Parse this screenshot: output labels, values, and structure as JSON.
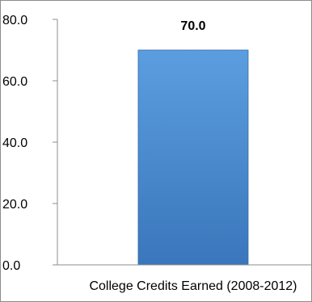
{
  "chart_data": {
    "type": "bar",
    "categories": [
      "College Credits Earned (2008-2012)"
    ],
    "values": [
      70.0
    ],
    "data_labels": [
      "70.0"
    ],
    "ylim": [
      0,
      80
    ],
    "yticks": [
      0,
      20,
      40,
      60,
      80
    ],
    "ytick_labels": [
      "0.0",
      "20.0",
      "40.0",
      "60.0",
      "80.0"
    ],
    "grid": false,
    "legend": "none",
    "colors": {
      "bar_top": "#5b9ee0",
      "bar_bottom": "#3a76bb",
      "bar_edge": "#3268a8",
      "axis": "#8c8c8c"
    }
  }
}
